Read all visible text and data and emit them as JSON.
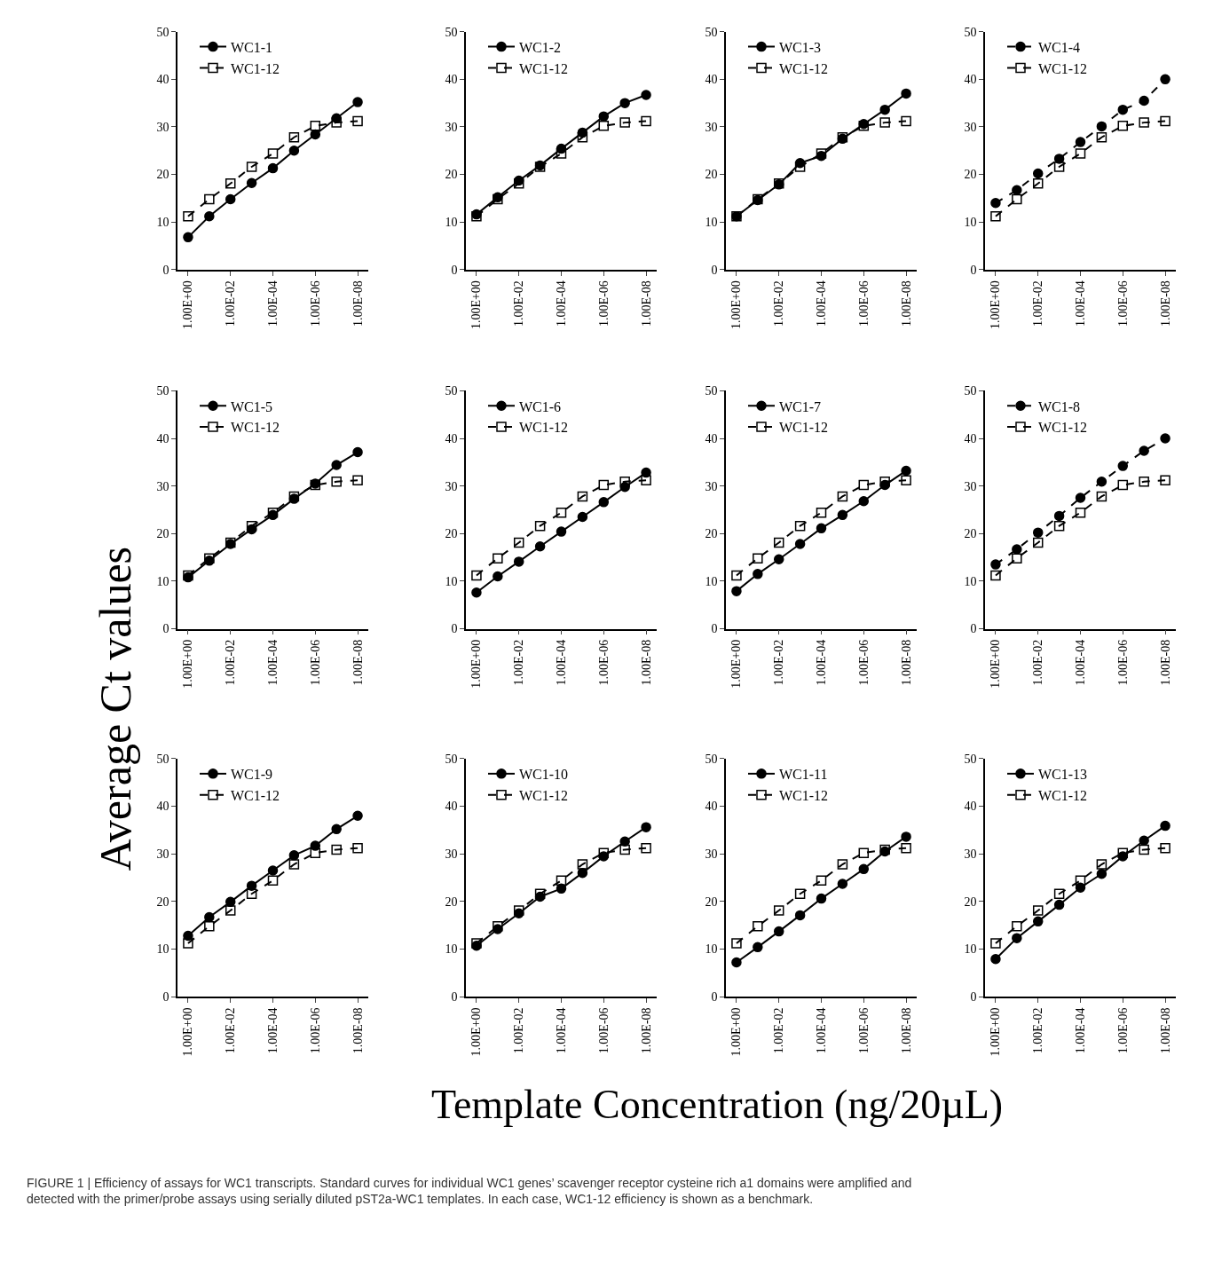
{
  "chart_data": [
    {
      "type": "line",
      "annotations": [
        "FIGURE 1 | Efficiency of assays for WC1 transcripts. Standard curves for individual WC1 genes’ scavenger receptor cysteine rich a1 domains were amplified and detected with the primer/probe assays using serially diluted pST2a-WC1 templates. In each case, WC1-12 efficiency is shown as a benchmark."
      ],
      "categories": [
        "1.00E+00",
        null,
        "1.00E-02",
        null,
        "1.00E-04",
        null,
        "1.00E-06",
        null,
        "1.00E-08"
      ],
      "ylim": [
        0,
        50
      ],
      "yticks": [
        0,
        10,
        20,
        30,
        40,
        50
      ],
      "legend": "top left",
      "series": [
        {
          "name": "WC1-1",
          "color": "#000000",
          "marker": "circle",
          "line_style": "solid",
          "values": [
            6.8,
            11.2,
            14.8,
            18.2,
            21.3,
            25.0,
            28.4,
            31.8,
            35.2
          ]
        },
        {
          "name": "WC1-12",
          "color": "#000000",
          "marker": "square",
          "line_style": "dashed",
          "values": [
            11.2,
            14.8,
            18.1,
            21.6,
            24.4,
            27.8,
            30.2,
            30.9,
            31.2
          ]
        }
      ]
    },
    {
      "type": "line",
      "categories": [
        "1.00E+00",
        null,
        "1.00E-02",
        null,
        "1.00E-04",
        null,
        "1.00E-06",
        null,
        "1.00E-08"
      ],
      "ylim": [
        0,
        50
      ],
      "yticks": [
        0,
        10,
        20,
        30,
        40,
        50
      ],
      "legend": "top left",
      "series": [
        {
          "name": "WC1-2",
          "color": "#000000",
          "marker": "circle",
          "line_style": "solid",
          "values": [
            11.6,
            15.2,
            18.7,
            21.9,
            25.4,
            28.8,
            32.2,
            35.0,
            36.7
          ]
        },
        {
          "name": "WC1-12",
          "color": "#000000",
          "marker": "square",
          "line_style": "dashed",
          "values": [
            11.2,
            14.8,
            18.1,
            21.6,
            24.4,
            27.8,
            30.2,
            30.9,
            31.2
          ]
        }
      ]
    },
    {
      "type": "line",
      "categories": [
        "1.00E+00",
        null,
        "1.00E-02",
        null,
        "1.00E-04",
        null,
        "1.00E-06",
        null,
        "1.00E-08"
      ],
      "ylim": [
        0,
        50
      ],
      "yticks": [
        0,
        10,
        20,
        30,
        40,
        50
      ],
      "legend": "top left",
      "series": [
        {
          "name": "WC1-3",
          "color": "#000000",
          "marker": "circle",
          "line_style": "solid",
          "values": [
            11.2,
            14.6,
            17.9,
            22.4,
            23.9,
            27.5,
            30.6,
            33.6,
            37.0
          ]
        },
        {
          "name": "WC1-12",
          "color": "#000000",
          "marker": "square",
          "line_style": "dashed",
          "values": [
            11.2,
            14.8,
            18.1,
            21.6,
            24.4,
            27.8,
            30.2,
            30.9,
            31.2
          ]
        }
      ]
    },
    {
      "type": "line",
      "categories": [
        "1.00E+00",
        null,
        "1.00E-02",
        null,
        "1.00E-04",
        null,
        "1.00E-06",
        null,
        "1.00E-08"
      ],
      "ylim": [
        0,
        50
      ],
      "yticks": [
        0,
        10,
        20,
        30,
        40,
        50
      ],
      "legend": "top left",
      "series": [
        {
          "name": "WC1-4",
          "color": "#000000",
          "marker": "circle",
          "line_style": "dashed",
          "values": [
            14.0,
            16.7,
            20.2,
            23.3,
            26.8,
            30.1,
            33.6,
            35.5,
            40.0
          ]
        },
        {
          "name": "WC1-12",
          "color": "#000000",
          "marker": "square",
          "line_style": "dashed",
          "values": [
            11.2,
            14.8,
            18.1,
            21.6,
            24.4,
            27.8,
            30.2,
            30.9,
            31.2
          ]
        }
      ]
    },
    {
      "type": "line",
      "ylabel": "Average Ct values",
      "categories": [
        "1.00E+00",
        null,
        "1.00E-02",
        null,
        "1.00E-04",
        null,
        "1.00E-06",
        null,
        "1.00E-08"
      ],
      "ylim": [
        0,
        50
      ],
      "yticks": [
        0,
        10,
        20,
        30,
        40,
        50
      ],
      "legend": "top left",
      "series": [
        {
          "name": "WC1-5",
          "color": "#000000",
          "marker": "circle",
          "line_style": "solid",
          "values": [
            10.8,
            14.3,
            17.8,
            20.9,
            23.9,
            27.3,
            30.5,
            34.4,
            37.1
          ]
        },
        {
          "name": "WC1-12",
          "color": "#000000",
          "marker": "square",
          "line_style": "dashed",
          "values": [
            11.2,
            14.8,
            18.1,
            21.6,
            24.4,
            27.8,
            30.2,
            30.9,
            31.2
          ]
        }
      ]
    },
    {
      "type": "line",
      "categories": [
        "1.00E+00",
        null,
        "1.00E-02",
        null,
        "1.00E-04",
        null,
        "1.00E-06",
        null,
        "1.00E-08"
      ],
      "ylim": [
        0,
        50
      ],
      "yticks": [
        0,
        10,
        20,
        30,
        40,
        50
      ],
      "legend": "top left",
      "series": [
        {
          "name": "WC1-6",
          "color": "#000000",
          "marker": "circle",
          "line_style": "solid",
          "values": [
            7.6,
            11.0,
            14.1,
            17.3,
            20.4,
            23.5,
            26.6,
            29.8,
            32.8
          ]
        },
        {
          "name": "WC1-12",
          "color": "#000000",
          "marker": "square",
          "line_style": "dashed",
          "values": [
            11.2,
            14.8,
            18.1,
            21.6,
            24.4,
            27.8,
            30.2,
            30.9,
            31.2
          ]
        }
      ]
    },
    {
      "type": "line",
      "categories": [
        "1.00E+00",
        null,
        "1.00E-02",
        null,
        "1.00E-04",
        null,
        "1.00E-06",
        null,
        "1.00E-08"
      ],
      "ylim": [
        0,
        50
      ],
      "yticks": [
        0,
        10,
        20,
        30,
        40,
        50
      ],
      "legend": "top left",
      "series": [
        {
          "name": "WC1-7",
          "color": "#000000",
          "marker": "circle",
          "line_style": "solid",
          "values": [
            7.9,
            11.5,
            14.6,
            17.8,
            21.1,
            23.9,
            26.8,
            30.2,
            33.2
          ]
        },
        {
          "name": "WC1-12",
          "color": "#000000",
          "marker": "square",
          "line_style": "dashed",
          "values": [
            11.2,
            14.8,
            18.1,
            21.6,
            24.4,
            27.8,
            30.2,
            30.9,
            31.2
          ]
        }
      ]
    },
    {
      "type": "line",
      "categories": [
        "1.00E+00",
        null,
        "1.00E-02",
        null,
        "1.00E-04",
        null,
        "1.00E-06",
        null,
        "1.00E-08"
      ],
      "ylim": [
        0,
        50
      ],
      "yticks": [
        0,
        10,
        20,
        30,
        40,
        50
      ],
      "legend": "top left",
      "series": [
        {
          "name": "WC1-8",
          "color": "#000000",
          "marker": "circle",
          "line_style": "dashed",
          "values": [
            13.5,
            16.7,
            20.2,
            23.7,
            27.5,
            30.9,
            34.2,
            37.4,
            40.0
          ]
        },
        {
          "name": "WC1-12",
          "color": "#000000",
          "marker": "square",
          "line_style": "dashed",
          "values": [
            11.2,
            14.8,
            18.1,
            21.6,
            24.4,
            27.8,
            30.2,
            30.9,
            31.2
          ]
        }
      ]
    },
    {
      "type": "line",
      "categories": [
        "1.00E+00",
        null,
        "1.00E-02",
        null,
        "1.00E-04",
        null,
        "1.00E-06",
        null,
        "1.00E-08"
      ],
      "ylim": [
        0,
        50
      ],
      "yticks": [
        0,
        10,
        20,
        30,
        40,
        50
      ],
      "legend": "top left",
      "series": [
        {
          "name": "WC1-9",
          "color": "#000000",
          "marker": "circle",
          "line_style": "solid",
          "values": [
            12.8,
            16.7,
            19.9,
            23.3,
            26.5,
            29.7,
            31.7,
            35.2,
            38.0
          ]
        },
        {
          "name": "WC1-12",
          "color": "#000000",
          "marker": "square",
          "line_style": "dashed",
          "values": [
            11.2,
            14.8,
            18.1,
            21.6,
            24.4,
            27.8,
            30.2,
            30.9,
            31.2
          ]
        }
      ]
    },
    {
      "type": "line",
      "xlabel": "Template Concentration (ng/20µL)",
      "categories": [
        "1.00E+00",
        null,
        "1.00E-02",
        null,
        "1.00E-04",
        null,
        "1.00E-06",
        null,
        "1.00E-08"
      ],
      "ylim": [
        0,
        50
      ],
      "yticks": [
        0,
        10,
        20,
        30,
        40,
        50
      ],
      "legend": "top left",
      "series": [
        {
          "name": "WC1-10",
          "color": "#000000",
          "marker": "circle",
          "line_style": "solid",
          "values": [
            10.7,
            14.2,
            17.5,
            21.0,
            22.7,
            26.0,
            29.5,
            32.6,
            35.6
          ]
        },
        {
          "name": "WC1-12",
          "color": "#000000",
          "marker": "square",
          "line_style": "dashed",
          "values": [
            11.2,
            14.8,
            18.1,
            21.6,
            24.4,
            27.8,
            30.2,
            30.9,
            31.2
          ]
        }
      ]
    },
    {
      "type": "line",
      "categories": [
        "1.00E+00",
        null,
        "1.00E-02",
        null,
        "1.00E-04",
        null,
        "1.00E-06",
        null,
        "1.00E-08"
      ],
      "ylim": [
        0,
        50
      ],
      "yticks": [
        0,
        10,
        20,
        30,
        40,
        50
      ],
      "legend": "top left",
      "series": [
        {
          "name": "WC1-11",
          "color": "#000000",
          "marker": "circle",
          "line_style": "solid",
          "values": [
            7.2,
            10.4,
            13.7,
            17.1,
            20.6,
            23.7,
            26.8,
            30.5,
            33.6
          ]
        },
        {
          "name": "WC1-12",
          "color": "#000000",
          "marker": "square",
          "line_style": "dashed",
          "values": [
            11.2,
            14.8,
            18.1,
            21.6,
            24.4,
            27.8,
            30.2,
            30.9,
            31.2
          ]
        }
      ]
    },
    {
      "type": "line",
      "categories": [
        "1.00E+00",
        null,
        "1.00E-02",
        null,
        "1.00E-04",
        null,
        "1.00E-06",
        null,
        "1.00E-08"
      ],
      "ylim": [
        0,
        50
      ],
      "yticks": [
        0,
        10,
        20,
        30,
        40,
        50
      ],
      "legend": "top left",
      "series": [
        {
          "name": "WC1-13",
          "color": "#000000",
          "marker": "circle",
          "line_style": "solid",
          "values": [
            7.9,
            12.3,
            15.8,
            19.3,
            22.9,
            25.8,
            29.5,
            32.8,
            35.9
          ]
        },
        {
          "name": "WC1-12",
          "color": "#000000",
          "marker": "square",
          "line_style": "dashed",
          "values": [
            11.2,
            14.8,
            18.1,
            21.6,
            24.4,
            27.8,
            30.2,
            30.9,
            31.2
          ]
        }
      ]
    }
  ]
}
